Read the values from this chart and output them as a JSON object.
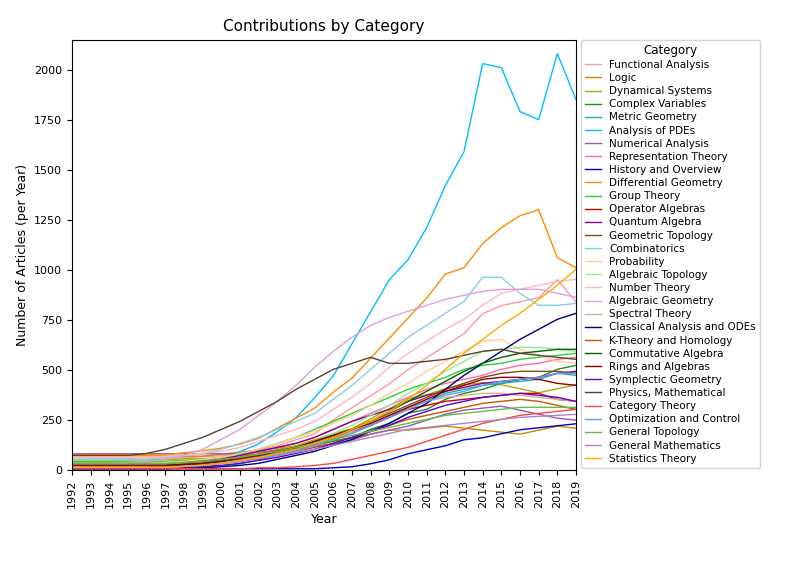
{
  "title": "Contributions by Category",
  "xlabel": "Year",
  "ylabel": "Number of Articles (per Year)",
  "years": [
    1992,
    1993,
    1994,
    1995,
    1996,
    1997,
    1998,
    1999,
    2000,
    2001,
    2002,
    2003,
    2004,
    2005,
    2006,
    2007,
    2008,
    2009,
    2010,
    2011,
    2012,
    2013,
    2014,
    2015,
    2016,
    2017,
    2018,
    2019
  ],
  "series": {
    "Functional Analysis": [
      60,
      58,
      58,
      58,
      60,
      58,
      60,
      65,
      70,
      80,
      100,
      120,
      150,
      180,
      250,
      310,
      370,
      430,
      500,
      560,
      620,
      680,
      780,
      820,
      840,
      860,
      950,
      840
    ],
    "Logic": [
      70,
      70,
      70,
      70,
      70,
      68,
      68,
      68,
      78,
      88,
      98,
      108,
      118,
      128,
      148,
      158,
      178,
      198,
      198,
      208,
      218,
      208,
      198,
      188,
      178,
      198,
      218,
      208
    ],
    "Dynamical Systems": [
      50,
      50,
      50,
      50,
      50,
      50,
      55,
      55,
      60,
      70,
      80,
      100,
      120,
      150,
      180,
      205,
      255,
      305,
      355,
      375,
      405,
      425,
      435,
      425,
      405,
      385,
      405,
      425
    ],
    "Complex Variables": [
      40,
      40,
      40,
      40,
      40,
      40,
      42,
      47,
      52,
      62,
      72,
      82,
      102,
      122,
      142,
      162,
      202,
      232,
      282,
      302,
      352,
      382,
      402,
      432,
      452,
      462,
      502,
      522
    ],
    "Metric Geometry": [
      5,
      5,
      5,
      5,
      5,
      5,
      10,
      15,
      20,
      30,
      50,
      70,
      92,
      122,
      152,
      182,
      222,
      262,
      312,
      342,
      382,
      402,
      422,
      432,
      442,
      452,
      482,
      472
    ],
    "Analysis of PDEs": [
      10,
      10,
      10,
      10,
      12,
      15,
      25,
      40,
      60,
      90,
      130,
      190,
      260,
      360,
      470,
      630,
      790,
      950,
      1050,
      1210,
      1420,
      1590,
      2030,
      2010,
      1790,
      1750,
      2080,
      1850
    ],
    "Numerical Analysis": [
      80,
      80,
      80,
      80,
      80,
      80,
      80,
      80,
      80,
      80,
      88,
      98,
      108,
      118,
      128,
      148,
      178,
      198,
      218,
      248,
      278,
      298,
      308,
      318,
      298,
      278,
      258,
      248
    ],
    "Representation Theory": [
      20,
      20,
      20,
      20,
      22,
      22,
      32,
      42,
      52,
      72,
      92,
      112,
      132,
      162,
      202,
      242,
      282,
      322,
      362,
      402,
      432,
      452,
      472,
      502,
      522,
      532,
      552,
      562
    ],
    "History and Overview": [
      5,
      5,
      5,
      5,
      5,
      5,
      5,
      5,
      5,
      5,
      5,
      5,
      5,
      5,
      10,
      15,
      30,
      50,
      80,
      100,
      120,
      150,
      160,
      180,
      200,
      210,
      220,
      230
    ],
    "Differential Geometry": [
      75,
      75,
      75,
      75,
      75,
      75,
      85,
      95,
      108,
      128,
      158,
      208,
      258,
      308,
      388,
      458,
      558,
      658,
      758,
      858,
      978,
      1010,
      1130,
      1210,
      1270,
      1300,
      1060,
      1010
    ],
    "Group Theory": [
      42,
      42,
      42,
      42,
      42,
      42,
      47,
      52,
      62,
      82,
      102,
      132,
      162,
      202,
      242,
      282,
      322,
      362,
      402,
      432,
      462,
      502,
      522,
      532,
      552,
      562,
      572,
      582
    ],
    "Operator Algebras": [
      32,
      32,
      32,
      32,
      32,
      32,
      37,
      42,
      52,
      62,
      77,
      92,
      112,
      132,
      162,
      192,
      222,
      262,
      302,
      322,
      342,
      352,
      362,
      372,
      382,
      382,
      352,
      342
    ],
    "Quantum Algebra": [
      5,
      5,
      5,
      5,
      12,
      18,
      22,
      32,
      52,
      72,
      92,
      112,
      132,
      162,
      202,
      242,
      272,
      302,
      342,
      372,
      392,
      412,
      432,
      442,
      452,
      462,
      482,
      492
    ],
    "Geometric Topology": [
      22,
      22,
      22,
      22,
      22,
      22,
      27,
      32,
      42,
      52,
      67,
      82,
      102,
      132,
      162,
      202,
      242,
      282,
      322,
      362,
      402,
      432,
      462,
      482,
      492,
      492,
      492,
      482
    ],
    "Combinatorics": [
      52,
      52,
      52,
      52,
      52,
      62,
      72,
      82,
      102,
      132,
      162,
      202,
      242,
      282,
      352,
      422,
      502,
      582,
      662,
      722,
      782,
      842,
      962,
      962,
      882,
      822,
      822,
      832
    ],
    "Probability": [
      32,
      32,
      32,
      32,
      32,
      37,
      42,
      52,
      62,
      82,
      102,
      132,
      162,
      192,
      232,
      272,
      322,
      382,
      432,
      492,
      542,
      592,
      642,
      652,
      602,
      572,
      542,
      532
    ],
    "Algebraic Topology": [
      22,
      22,
      22,
      22,
      22,
      22,
      27,
      32,
      42,
      57,
      72,
      92,
      112,
      142,
      182,
      222,
      272,
      322,
      382,
      432,
      492,
      542,
      592,
      602,
      612,
      612,
      602,
      592
    ],
    "Number Theory": [
      62,
      62,
      62,
      62,
      62,
      67,
      72,
      82,
      92,
      112,
      142,
      172,
      202,
      242,
      302,
      362,
      432,
      512,
      582,
      642,
      702,
      752,
      822,
      882,
      902,
      922,
      942,
      952
    ],
    "Algebraic Geometry": [
      32,
      32,
      32,
      37,
      42,
      52,
      72,
      102,
      152,
      202,
      272,
      342,
      422,
      512,
      592,
      662,
      722,
      762,
      792,
      822,
      852,
      872,
      892,
      902,
      902,
      902,
      882,
      862
    ],
    "Spectral Theory": [
      12,
      12,
      12,
      12,
      12,
      12,
      17,
      22,
      32,
      42,
      57,
      72,
      92,
      122,
      152,
      192,
      232,
      272,
      312,
      342,
      362,
      372,
      382,
      382,
      372,
      362,
      352,
      342
    ],
    "Classical Analysis and ODEs": [
      5,
      5,
      5,
      5,
      5,
      5,
      10,
      10,
      15,
      22,
      32,
      52,
      72,
      92,
      122,
      152,
      192,
      232,
      282,
      332,
      402,
      472,
      532,
      592,
      652,
      702,
      752,
      782
    ],
    "K-Theory and Homology": [
      12,
      12,
      12,
      12,
      12,
      12,
      17,
      22,
      32,
      42,
      57,
      72,
      92,
      112,
      132,
      162,
      192,
      222,
      252,
      272,
      292,
      312,
      332,
      342,
      352,
      342,
      322,
      302
    ],
    "Commutative Algebra": [
      22,
      22,
      22,
      22,
      22,
      22,
      27,
      32,
      42,
      57,
      72,
      92,
      112,
      142,
      172,
      202,
      242,
      292,
      342,
      392,
      442,
      492,
      532,
      562,
      582,
      592,
      602,
      602
    ],
    "Rings and Algebras": [
      22,
      22,
      22,
      22,
      22,
      22,
      27,
      32,
      42,
      57,
      72,
      92,
      112,
      142,
      172,
      202,
      232,
      272,
      312,
      352,
      392,
      422,
      452,
      462,
      462,
      452,
      432,
      422
    ],
    "Symplectic Geometry": [
      5,
      5,
      5,
      5,
      5,
      5,
      12,
      17,
      22,
      32,
      47,
      62,
      82,
      102,
      132,
      162,
      192,
      222,
      262,
      292,
      322,
      342,
      362,
      372,
      382,
      372,
      362,
      342
    ],
    "Physics, Mathematical": [
      72,
      72,
      72,
      72,
      82,
      102,
      132,
      162,
      202,
      242,
      292,
      342,
      402,
      452,
      502,
      532,
      562,
      532,
      532,
      542,
      552,
      572,
      592,
      602,
      582,
      572,
      562,
      552
    ],
    "Category Theory": [
      5,
      5,
      5,
      5,
      5,
      5,
      5,
      5,
      5,
      5,
      10,
      10,
      15,
      22,
      32,
      52,
      72,
      92,
      112,
      142,
      172,
      202,
      232,
      252,
      272,
      282,
      292,
      302
    ],
    "Optimization and Control": [
      12,
      12,
      12,
      12,
      12,
      12,
      17,
      22,
      32,
      42,
      57,
      72,
      92,
      122,
      152,
      182,
      222,
      262,
      302,
      342,
      372,
      392,
      422,
      442,
      452,
      462,
      482,
      482
    ],
    "General Topology": [
      32,
      32,
      32,
      32,
      32,
      32,
      37,
      42,
      52,
      62,
      77,
      92,
      112,
      132,
      152,
      172,
      192,
      212,
      232,
      252,
      272,
      282,
      292,
      302,
      312,
      312,
      312,
      312
    ],
    "General Mathematics": [
      12,
      12,
      12,
      12,
      12,
      12,
      17,
      22,
      32,
      42,
      57,
      72,
      87,
      102,
      122,
      142,
      162,
      182,
      202,
      212,
      222,
      232,
      242,
      252,
      262,
      267,
      272,
      277
    ],
    "Statistics Theory": [
      12,
      12,
      12,
      12,
      12,
      12,
      17,
      22,
      32,
      47,
      62,
      82,
      102,
      132,
      162,
      202,
      242,
      292,
      352,
      422,
      502,
      582,
      652,
      722,
      782,
      852,
      922,
      1002
    ]
  },
  "colors": {
    "Functional Analysis": "#FF9999",
    "Logic": "#CC8800",
    "Dynamical Systems": "#AAAA00",
    "Complex Variables": "#228B22",
    "Metric Geometry": "#20B2AA",
    "Analysis of PDEs": "#00BFFF",
    "Numerical Analysis": "#9B59B6",
    "Representation Theory": "#FF69B4",
    "History and Overview": "#0000CD",
    "Differential Geometry": "#FF8C00",
    "Group Theory": "#32CD32",
    "Operator Algebras": "#CC0000",
    "Quantum Algebra": "#8B008B",
    "Geometric Topology": "#8B4513",
    "Combinatorics": "#87CEEB",
    "Probability": "#FFCC99",
    "Algebraic Topology": "#90EE90",
    "Number Theory": "#FFB6C1",
    "Algebraic Geometry": "#DDA0DD",
    "Spectral Theory": "#D2B48C",
    "Classical Analysis and ODEs": "#000080",
    "K-Theory and Homology": "#CC5500",
    "Commutative Algebra": "#006400",
    "Rings and Algebras": "#8B0000",
    "Symplectic Geometry": "#6600CC",
    "Physics, Mathematical": "#5C4033",
    "Category Theory": "#FF4444",
    "Optimization and Control": "#6699FF",
    "General Topology": "#66BB44",
    "General Mathematics": "#AA88CC",
    "Statistics Theory": "#FFAA00"
  },
  "ylim": [
    0,
    2150
  ],
  "figsize": [
    8.0,
    5.66
  ],
  "dpi": 100,
  "legend_fontsize": 7.5,
  "legend_title_fontsize": 8.5,
  "title_fontsize": 11,
  "axis_label_fontsize": 9,
  "tick_fontsize": 8
}
